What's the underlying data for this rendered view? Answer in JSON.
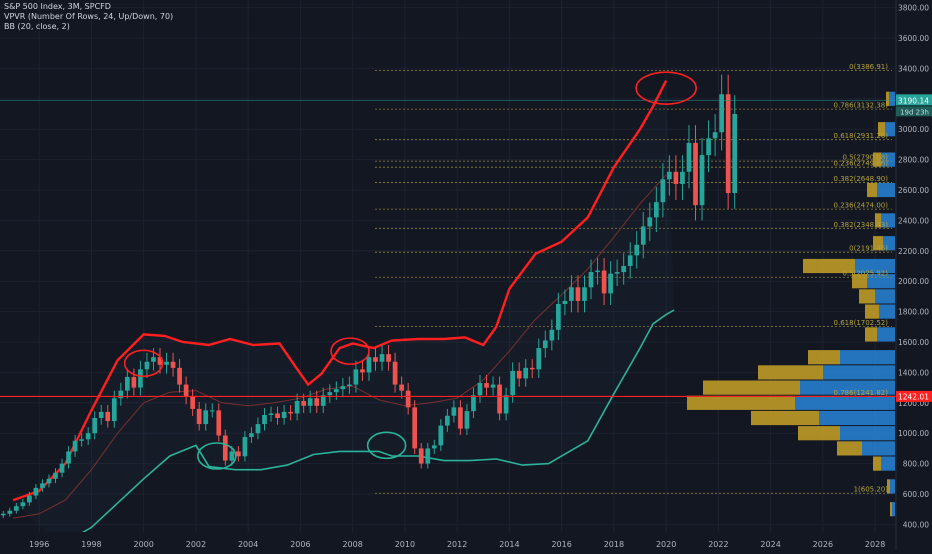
{
  "legend": {
    "line1": "S&P 500 Index, 3M, SPCFD",
    "line2": "VPVR (Number Of Rows, 24, Up/Down, 70)",
    "line3": "BB (20, close, 2)"
  },
  "colors": {
    "background": "#131722",
    "up": "#26a69a",
    "down": "#ef5350",
    "bb_upper": "#ff1f1f",
    "bb_lower": "#2bb39a",
    "bb_basis": "#7a2f2f",
    "fib": "#b5a23c",
    "hline": "#ff2020",
    "vp_up": "#2579c6",
    "vp_down": "#c9a227",
    "price_tag_current": "#26a69a",
    "price_tag_hline": "#ff2020"
  },
  "chart_data": {
    "type": "candlestick",
    "title": "S&P 500 Index, 3M, SPCFD",
    "x_range": [
      1994.5,
      2028.8
    ],
    "y_range": [
      350,
      3850
    ],
    "x_tick_labels": [
      "1996",
      "1998",
      "2000",
      "2002",
      "2004",
      "2006",
      "2008",
      "2010",
      "2012",
      "2014",
      "2016",
      "2018",
      "2020",
      "2022",
      "2024",
      "2026",
      "2028"
    ],
    "y_tick_labels": [
      "400.00",
      "600.00",
      "800.00",
      "1000.00",
      "1200.00",
      "1400.00",
      "1600.00",
      "1800.00",
      "2000.00",
      "2200.00",
      "2400.00",
      "2600.00",
      "2800.00",
      "3000.00",
      "3200.00",
      "3400.00",
      "3600.00",
      "3800.00"
    ],
    "y_ticks": [
      400,
      600,
      800,
      1000,
      1200,
      1400,
      1600,
      1800,
      2000,
      2200,
      2400,
      2600,
      2800,
      3000,
      3200,
      3400,
      3600,
      3800
    ],
    "current_price": "3190.14",
    "current_price_value": 3190,
    "current_countdown": "19d 23h",
    "horizontal_line": "1242.01",
    "horizontal_line_value": 1242,
    "closes": [
      470,
      490,
      520,
      545,
      590,
      640,
      670,
      700,
      740,
      800,
      880,
      950,
      960,
      1000,
      1100,
      1140,
      1080,
      1230,
      1280,
      1370,
      1300,
      1420,
      1470,
      1500,
      1450,
      1470,
      1430,
      1320,
      1240,
      1160,
      1060,
      1150,
      1150,
      985,
      820,
      880,
      848,
      975,
      1000,
      1060,
      1120,
      1130,
      1100,
      1140,
      1130,
      1212,
      1180,
      1230,
      1180,
      1250,
      1270,
      1290,
      1310,
      1320,
      1420,
      1400,
      1500,
      1470,
      1520,
      1470,
      1320,
      1280,
      1170,
      900,
      800,
      900,
      920,
      1050,
      1115,
      1170,
      1030,
      1145,
      1250,
      1330,
      1300,
      1320,
      1130,
      1250,
      1410,
      1360,
      1430,
      1420,
      1560,
      1610,
      1680,
      1850,
      1870,
      1960,
      1870,
      1960,
      2060,
      2070,
      1920,
      2050,
      2060,
      2100,
      2170,
      2240,
      2360,
      2420,
      2520,
      2670,
      2720,
      2640,
      2720,
      2910,
      2500,
      2830,
      2940,
      2980,
      3230,
      2580,
      3100
    ],
    "opens": [
      460,
      470,
      490,
      520,
      545,
      590,
      640,
      670,
      700,
      740,
      800,
      880,
      950,
      960,
      1000,
      1100,
      1140,
      1080,
      1230,
      1280,
      1370,
      1300,
      1420,
      1470,
      1500,
      1450,
      1470,
      1430,
      1320,
      1240,
      1160,
      1060,
      1150,
      1150,
      985,
      820,
      880,
      848,
      975,
      1000,
      1060,
      1120,
      1130,
      1100,
      1140,
      1130,
      1212,
      1180,
      1230,
      1180,
      1250,
      1270,
      1290,
      1310,
      1320,
      1420,
      1400,
      1500,
      1470,
      1520,
      1470,
      1320,
      1280,
      1170,
      900,
      800,
      900,
      920,
      1050,
      1115,
      1170,
      1030,
      1145,
      1250,
      1330,
      1300,
      1320,
      1130,
      1250,
      1410,
      1360,
      1430,
      1420,
      1560,
      1610,
      1680,
      1850,
      1870,
      1960,
      1870,
      1960,
      2060,
      2070,
      1920,
      2050,
      2060,
      2100,
      2170,
      2240,
      2360,
      2420,
      2520,
      2670,
      2720,
      2640,
      2720,
      2910,
      2500,
      2830,
      2940,
      2980,
      3230,
      2580
    ],
    "bb_upper": [
      [
        1995.0,
        560
      ],
      [
        1996.0,
        620
      ],
      [
        1997.0,
        800
      ],
      [
        1998.0,
        1150
      ],
      [
        1999.0,
        1480
      ],
      [
        2000.0,
        1650
      ],
      [
        2000.8,
        1640
      ],
      [
        2001.5,
        1600
      ],
      [
        2002.5,
        1580
      ],
      [
        2003.3,
        1620
      ],
      [
        2004.2,
        1580
      ],
      [
        2005.2,
        1590
      ],
      [
        2005.8,
        1440
      ],
      [
        2006.3,
        1320
      ],
      [
        2006.8,
        1390
      ],
      [
        2007.5,
        1560
      ],
      [
        2008.0,
        1590
      ],
      [
        2008.8,
        1560
      ],
      [
        2009.5,
        1610
      ],
      [
        2010.5,
        1620
      ],
      [
        2011.5,
        1620
      ],
      [
        2012.3,
        1630
      ],
      [
        2013.0,
        1580
      ],
      [
        2013.5,
        1700
      ],
      [
        2014.0,
        1950
      ],
      [
        2015.0,
        2180
      ],
      [
        2016.0,
        2260
      ],
      [
        2017.0,
        2420
      ],
      [
        2018.0,
        2750
      ],
      [
        2019.0,
        3000
      ],
      [
        2019.5,
        3150
      ],
      [
        2020.0,
        3320
      ]
    ],
    "bb_basis": [
      [
        1995.0,
        440
      ],
      [
        1996.0,
        470
      ],
      [
        1997.0,
        560
      ],
      [
        1998.0,
        760
      ],
      [
        1999.0,
        1000
      ],
      [
        2000.0,
        1200
      ],
      [
        2001.0,
        1270
      ],
      [
        2002.0,
        1280
      ],
      [
        2003.0,
        1200
      ],
      [
        2004.0,
        1180
      ],
      [
        2005.0,
        1200
      ],
      [
        2006.0,
        1230
      ],
      [
        2007.0,
        1290
      ],
      [
        2008.0,
        1310
      ],
      [
        2009.0,
        1220
      ],
      [
        2010.0,
        1180
      ],
      [
        2011.0,
        1200
      ],
      [
        2012.0,
        1230
      ],
      [
        2013.0,
        1350
      ],
      [
        2014.0,
        1540
      ],
      [
        2015.0,
        1750
      ],
      [
        2016.0,
        1910
      ],
      [
        2017.0,
        2080
      ],
      [
        2018.0,
        2290
      ],
      [
        2019.0,
        2510
      ],
      [
        2020.0,
        2700
      ]
    ],
    "bb_lower": [
      [
        1996.8,
        260
      ],
      [
        1998.0,
        380
      ],
      [
        1999.0,
        540
      ],
      [
        2000.0,
        700
      ],
      [
        2001.0,
        850
      ],
      [
        2002.0,
        920
      ],
      [
        2002.5,
        780
      ],
      [
        2003.5,
        760
      ],
      [
        2004.5,
        760
      ],
      [
        2005.5,
        790
      ],
      [
        2006.5,
        860
      ],
      [
        2007.5,
        880
      ],
      [
        2008.5,
        880
      ],
      [
        2009.0,
        880
      ],
      [
        2009.5,
        850
      ],
      [
        2010.5,
        850
      ],
      [
        2011.5,
        820
      ],
      [
        2012.5,
        820
      ],
      [
        2013.5,
        830
      ],
      [
        2014.5,
        790
      ],
      [
        2015.5,
        800
      ],
      [
        2016.3,
        880
      ],
      [
        2017.0,
        950
      ],
      [
        2018.0,
        1260
      ],
      [
        2019.0,
        1560
      ],
      [
        2019.5,
        1720
      ],
      [
        2020.0,
        1780
      ],
      [
        2020.3,
        1810
      ]
    ],
    "fib_levels": [
      {
        "label": "0(3386.91)",
        "value": 3387
      },
      {
        "label": "0.786(3132.38)",
        "value": 3132
      },
      {
        "label": "0.618(2931.26)",
        "value": 2931
      },
      {
        "label": "0.5(2790.08)",
        "value": 2790
      },
      {
        "label": "0.236(2749.66)",
        "value": 2750
      },
      {
        "label": "0.382(2648.90)",
        "value": 2649
      },
      {
        "label": "0.236(2474.00)",
        "value": 2474
      },
      {
        "label": "0.382(2348.43)",
        "value": 2348
      },
      {
        "label": "0(2191.45)",
        "value": 2191
      },
      {
        "label": "0.5(2025.92)",
        "value": 2026
      },
      {
        "label": "0.618(1702.52)",
        "value": 1703
      },
      {
        "label": "0.786(1241.82)",
        "value": 1242
      },
      {
        "label": "1(605.20)",
        "value": 605
      }
    ],
    "volume_profile": [
      {
        "price": 500,
        "up": 3,
        "down": 2
      },
      {
        "price": 650,
        "up": 5,
        "down": 3
      },
      {
        "price": 800,
        "up": 14,
        "down": 8
      },
      {
        "price": 900,
        "up": 33,
        "down": 25
      },
      {
        "price": 1000,
        "up": 55,
        "down": 42
      },
      {
        "price": 1100,
        "up": 76,
        "down": 68
      },
      {
        "price": 1200,
        "up": 100,
        "down": 108
      },
      {
        "price": 1300,
        "up": 95,
        "down": 97
      },
      {
        "price": 1400,
        "up": 72,
        "down": 65
      },
      {
        "price": 1500,
        "up": 55,
        "down": 32
      },
      {
        "price": 1650,
        "up": 18,
        "down": 12
      },
      {
        "price": 1800,
        "up": 16,
        "down": 14
      },
      {
        "price": 1900,
        "up": 20,
        "down": 16
      },
      {
        "price": 2000,
        "up": 28,
        "down": 15
      },
      {
        "price": 2100,
        "up": 40,
        "down": 52
      },
      {
        "price": 2250,
        "up": 12,
        "down": 10
      },
      {
        "price": 2400,
        "up": 14,
        "down": 6
      },
      {
        "price": 2600,
        "up": 18,
        "down": 10
      },
      {
        "price": 2800,
        "up": 14,
        "down": 8
      },
      {
        "price": 3000,
        "up": 10,
        "down": 7
      },
      {
        "price": 3200,
        "up": 6,
        "down": 3
      }
    ],
    "circled_regions": [
      {
        "x": 2000.0,
        "y": 1460
      },
      {
        "x": 2002.8,
        "y": 850
      },
      {
        "x": 2007.9,
        "y": 1540
      },
      {
        "x": 2009.3,
        "y": 920
      },
      {
        "x": 2020.0,
        "y": 3270
      }
    ]
  }
}
